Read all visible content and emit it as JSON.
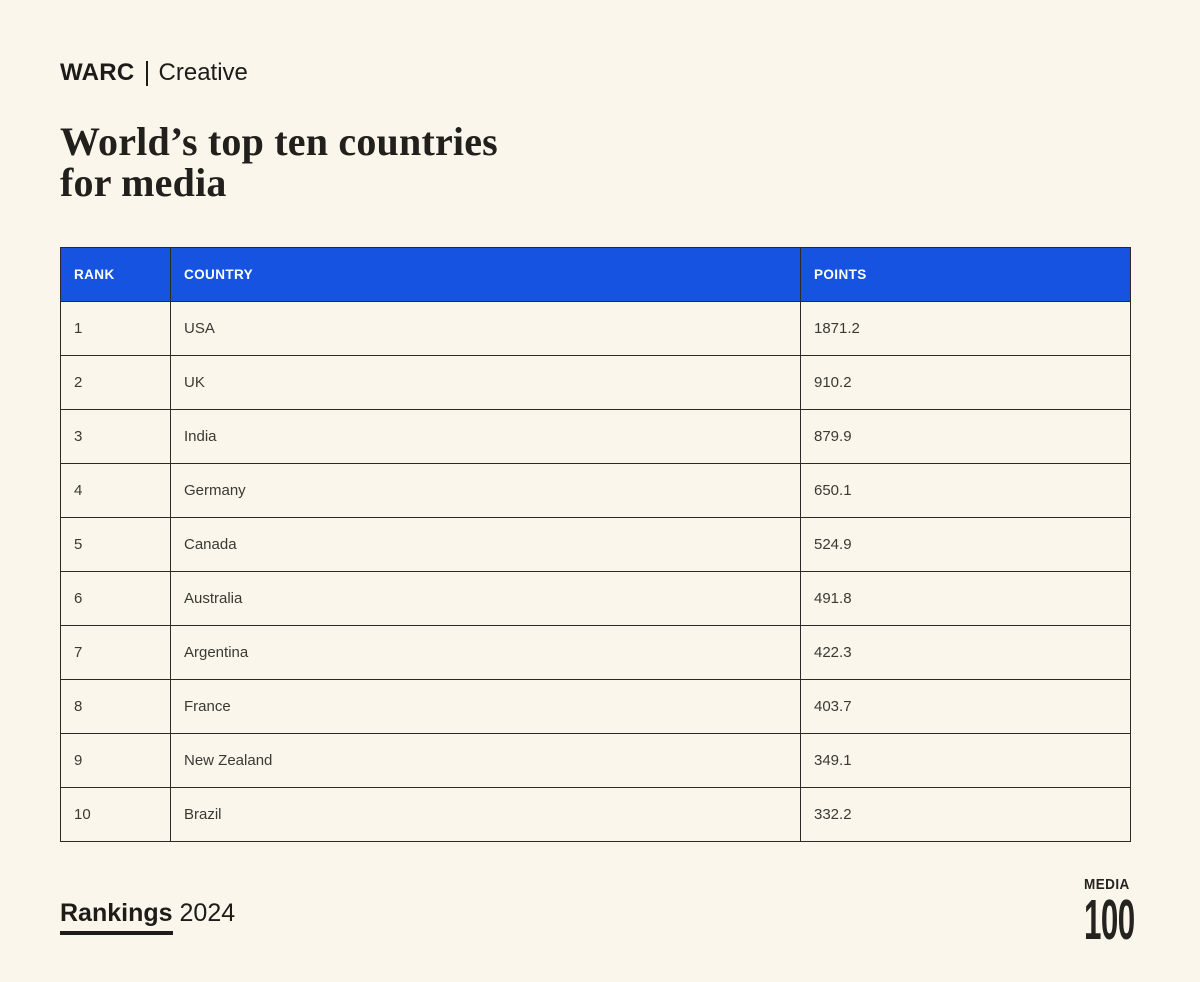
{
  "colors": {
    "background": "#FAF6EB",
    "header_blue": "#1553E0",
    "border": "#2B2A26",
    "text_dark": "#21201C",
    "header_text": "#FFFFFF"
  },
  "brand": {
    "primary": "WARC",
    "secondary": "Creative"
  },
  "heading": {
    "line1": "World’s top ten countries",
    "line2": "for media"
  },
  "chart_data": {
    "type": "table",
    "title": "World’s top ten countries for media",
    "columns": [
      "RANK",
      "COUNTRY",
      "POINTS"
    ],
    "rows": [
      [
        "1",
        "USA",
        "1871.2"
      ],
      [
        "2",
        "UK",
        "910.2"
      ],
      [
        "3",
        "India",
        "879.9"
      ],
      [
        "4",
        "Germany",
        "650.1"
      ],
      [
        "5",
        "Canada",
        "524.9"
      ],
      [
        "6",
        "Australia",
        "491.8"
      ],
      [
        "7",
        "Argentina",
        "422.3"
      ],
      [
        "8",
        "France",
        "403.7"
      ],
      [
        "9",
        "New Zealand",
        "349.1"
      ],
      [
        "10",
        "Brazil",
        "332.2"
      ]
    ]
  },
  "footer": {
    "rankings_label": "Rankings",
    "rankings_year": "2024",
    "media_logo": {
      "word": "MEDIA",
      "number": "100"
    }
  }
}
